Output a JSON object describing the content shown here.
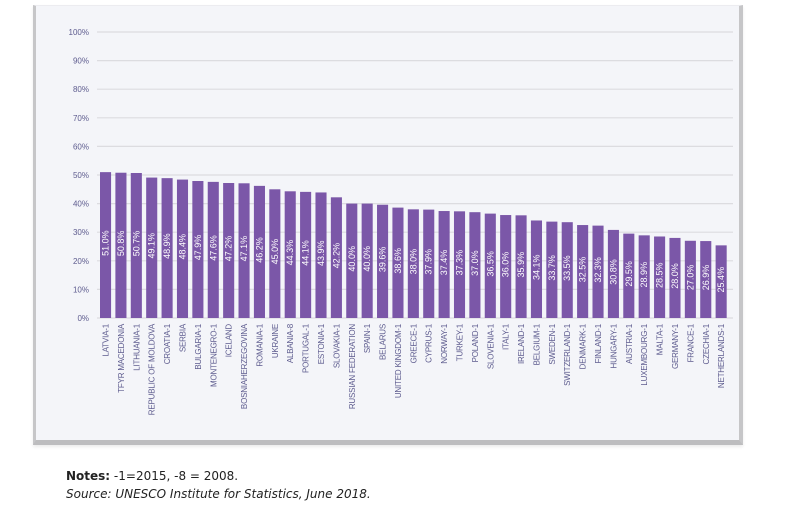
{
  "chart_data": {
    "type": "bar",
    "title": "",
    "xlabel": "",
    "ylabel": "",
    "ylim": [
      0,
      100
    ],
    "yticks": [
      0,
      10,
      20,
      30,
      40,
      50,
      60,
      70,
      80,
      90,
      100
    ],
    "ytick_labels": [
      "0%",
      "10%",
      "20%",
      "30%",
      "40%",
      "50%",
      "60%",
      "70%",
      "80%",
      "90%",
      "100%"
    ],
    "grid": true,
    "legend": "none",
    "bar_color": "#7B57A8",
    "categories": [
      "LATVIA-1",
      "TFYR MACEDONIA",
      "LITHUANIA-1",
      "REPUBLIC OF MOLDOVA",
      "CROATIA-1",
      "SERBIA",
      "BULGARIA-1",
      "MONTENEGRO-1",
      "ICELAND",
      "BOSNIAHERZEGOVINA",
      "ROMANIA-1",
      "UKRAINE",
      "ALBANIA-8",
      "PORTUGAL-1",
      "ESTONIA-1",
      "SLOVAKIA-1",
      "RUSSIAN FEDERATION",
      "SPAIN-1",
      "BELARUS",
      "UNITED KINGDOM-1",
      "GREECE-1",
      "CYPRUS-1",
      "NORWAY-1",
      "TURKEY-1",
      "POLAND-1",
      "SLOVENIA-1",
      "ITALY-1",
      "IRELAND-1",
      "BELGIUM-1",
      "SWEDEN-1",
      "SWITZERLAND-1",
      "DENMARK-1",
      "FINLAND-1",
      "HUNGARY-1",
      "AUSTRIA-1",
      "LUXEMBOURG-1",
      "MALTA-1",
      "GERMANY-1",
      "FRANCE-1",
      "CZECHIA-1",
      "NETHERLANDS-1"
    ],
    "values": [
      51.0,
      50.8,
      50.7,
      49.1,
      48.9,
      48.4,
      47.9,
      47.6,
      47.2,
      47.1,
      46.2,
      45.0,
      44.3,
      44.1,
      43.9,
      42.2,
      40.0,
      40.0,
      39.6,
      38.6,
      38.0,
      37.9,
      37.4,
      37.3,
      37.0,
      36.5,
      36.0,
      35.9,
      34.1,
      33.7,
      33.5,
      32.5,
      32.3,
      30.8,
      29.5,
      28.9,
      28.5,
      28.0,
      27.0,
      26.9,
      25.4
    ],
    "value_labels": [
      "51.0%",
      "50.8%",
      "50.7%",
      "49.1%",
      "48.9%",
      "48.4%",
      "47.9%",
      "47.6%",
      "47.2%",
      "47.1%",
      "46.2%",
      "45.0%",
      "44.3%",
      "44.1%",
      "43.9%",
      "42.2%",
      "40.0%",
      "40.0%",
      "39.6%",
      "38.6%",
      "38.0%",
      "37.9%",
      "37.4%",
      "37.3%",
      "37.0%",
      "36.5%",
      "36.0%",
      "35.9%",
      "34.1%",
      "33.7%",
      "33.5%",
      "32.5%",
      "32.3%",
      "30.8%",
      "29.5%",
      "28.9%",
      "28.5%",
      "28.0%",
      "27.0%",
      "26.9%",
      "25.4%"
    ]
  },
  "footer": {
    "notes_label": "Notes:",
    "notes_text": " -1=2015, -8 = 2008.",
    "source": "Source: UNESCO Institute for Statistics, June 2018."
  }
}
